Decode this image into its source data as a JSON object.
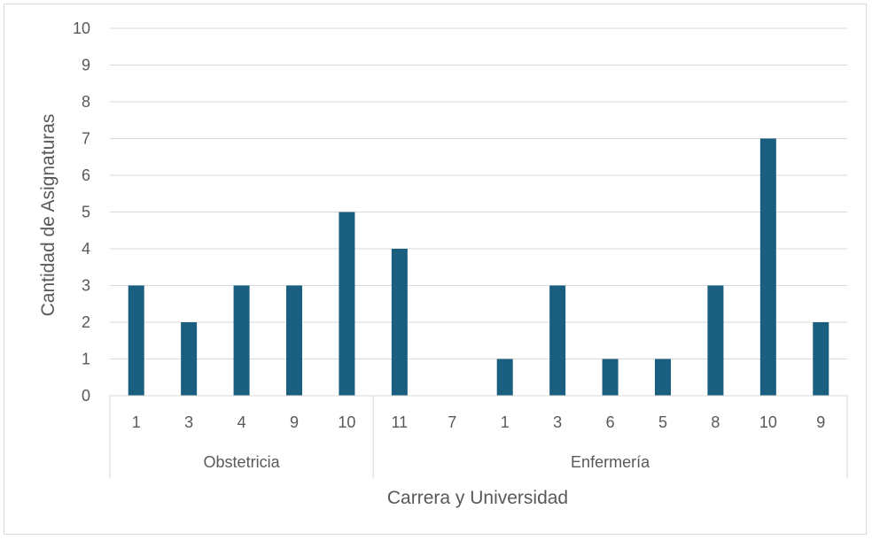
{
  "chart_data": {
    "type": "bar",
    "xlabel": "Carrera y Universidad",
    "ylabel": "Cantidad de Asignaturas",
    "ylim": [
      0,
      10
    ],
    "y_ticks": [
      0,
      1,
      2,
      3,
      4,
      5,
      6,
      7,
      8,
      9,
      10
    ],
    "grid": true,
    "bar_color": "#1b5f80",
    "groups": [
      {
        "name": "Obstetricia",
        "categories": [
          "1",
          "3",
          "4",
          "9",
          "10"
        ],
        "values": [
          3,
          2,
          3,
          3,
          5
        ]
      },
      {
        "name": "Enfermería",
        "categories": [
          "11",
          "7",
          "1",
          "3",
          "6",
          "5",
          "8",
          "10",
          "9"
        ],
        "values": [
          4,
          0,
          1,
          3,
          1,
          1,
          3,
          7,
          2
        ]
      }
    ]
  }
}
